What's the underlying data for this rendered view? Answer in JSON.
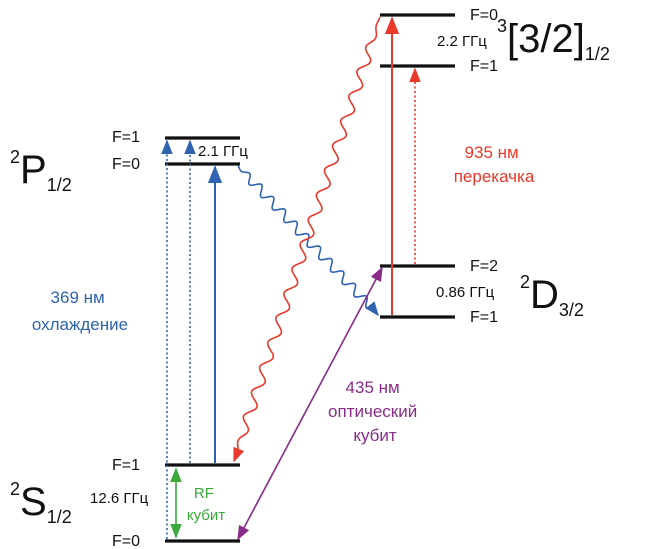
{
  "states": {
    "P": {
      "sup": "2",
      "main": "P",
      "sub": "1/2",
      "f_upper": "F=1",
      "f_lower": "F=0",
      "splitting": "2.1 ГГц"
    },
    "S": {
      "sup": "2",
      "main": "S",
      "sub": "1/2",
      "f_upper": "F=1",
      "f_lower": "F=0",
      "splitting": "12.6 ГГц"
    },
    "D": {
      "sup": "2",
      "main": "D",
      "sub": "3/2",
      "f_upper": "F=2",
      "f_lower": "F=1",
      "splitting": "0.86 ГГц"
    },
    "B": {
      "sup": "3",
      "main": "[3/2]",
      "sub": "1/2",
      "f_upper": "F=0",
      "f_lower": "F=1",
      "splitting": "2.2 ГГц"
    }
  },
  "transitions": {
    "cooling": {
      "line1": "369 нм",
      "line2": "охлаждение",
      "color": "#2e63b0"
    },
    "repump": {
      "line1": "935 нм",
      "line2": "перекачка",
      "color": "#e8392a"
    },
    "optical_qubit": {
      "line1": "435 нм",
      "line2": "оптический",
      "line3": "кубит",
      "color": "#8a2b8a"
    },
    "rf_qubit": {
      "line1": "RF",
      "line2": "кубит",
      "color": "#3aa83a"
    }
  },
  "colors": {
    "level": "#111111",
    "decay": "#2e63b0",
    "decay_red": "#e8392a"
  }
}
